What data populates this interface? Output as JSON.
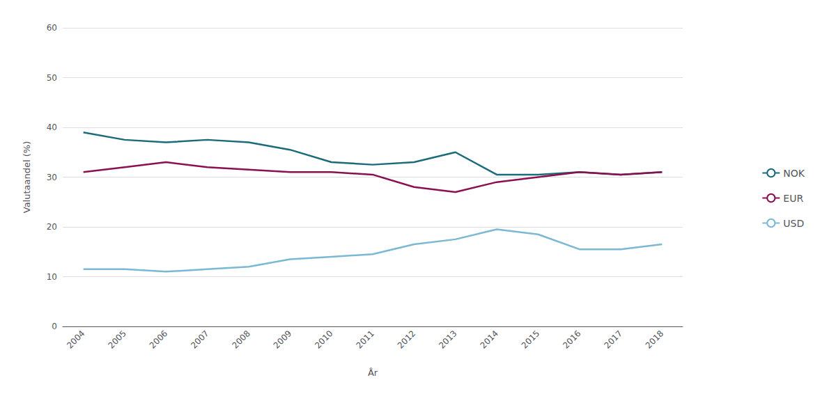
{
  "chart_data": {
    "type": "line",
    "xlabel": "År",
    "ylabel": "Valutaandel (%)",
    "categories": [
      "2004",
      "2005",
      "2006",
      "2007",
      "2008",
      "2009",
      "2010",
      "2011",
      "2012",
      "2013",
      "2014",
      "2015",
      "2016",
      "2017",
      "2018"
    ],
    "series": [
      {
        "name": "NOK",
        "color": "#1b6b7b",
        "values": [
          39.0,
          37.5,
          37.0,
          37.5,
          37.0,
          35.5,
          33.0,
          32.5,
          33.0,
          35.0,
          30.5,
          30.5,
          31.0,
          30.5,
          31.0
        ]
      },
      {
        "name": "EUR",
        "color": "#8b1050",
        "values": [
          31.0,
          32.0,
          33.0,
          32.0,
          31.5,
          31.0,
          31.0,
          30.5,
          28.0,
          27.0,
          29.0,
          30.0,
          31.0,
          30.5,
          31.0
        ]
      },
      {
        "name": "USD",
        "color": "#7ab8d4",
        "values": [
          11.5,
          11.5,
          11.0,
          11.5,
          12.0,
          13.5,
          14.0,
          14.5,
          16.5,
          17.5,
          19.5,
          18.5,
          15.5,
          15.5,
          16.5
        ]
      }
    ],
    "ylim": [
      0,
      60
    ],
    "yticks": [
      0,
      10,
      20,
      30,
      40,
      50,
      60
    ],
    "grid": true,
    "legend": "right"
  }
}
